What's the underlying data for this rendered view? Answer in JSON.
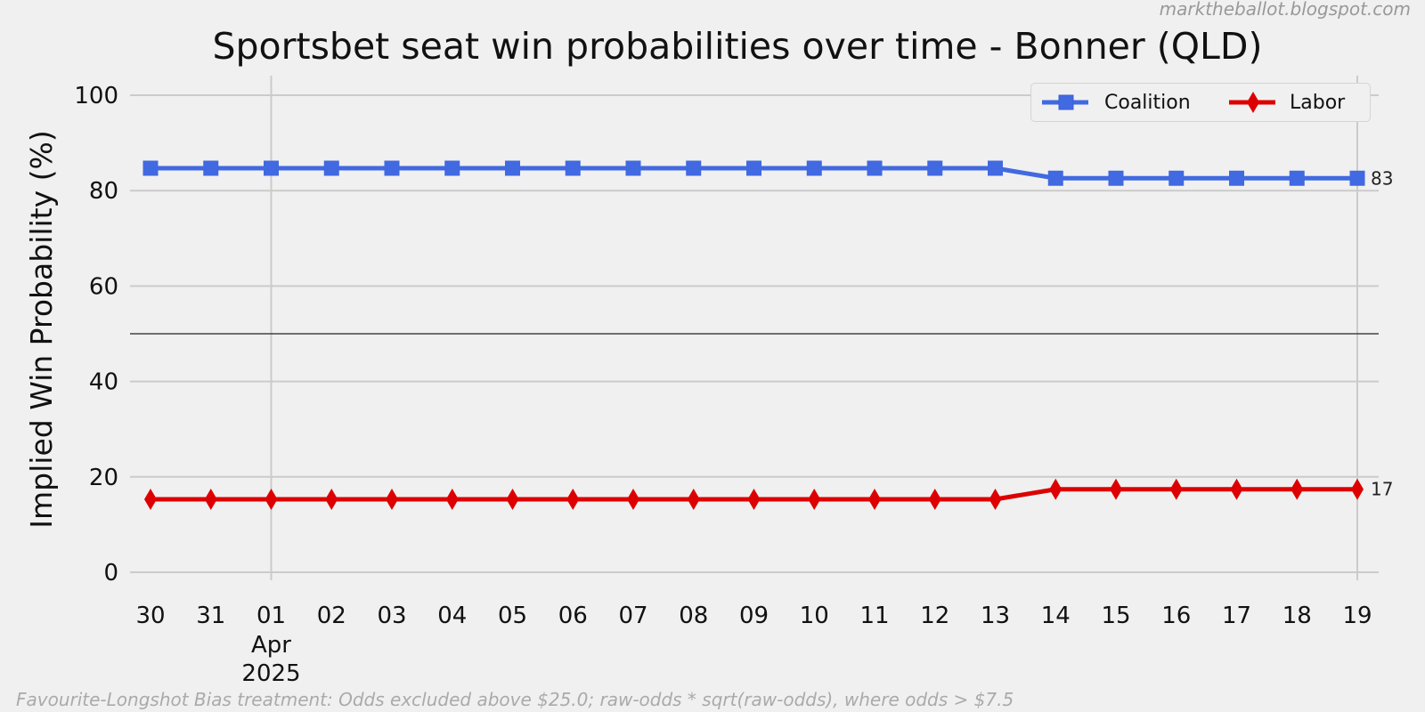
{
  "credit": "marktheballot.blogspot.com",
  "footnote": "Favourite-Longshot Bias treatment: Odds excluded above $25.0; raw-odds * sqrt(raw-odds), where odds > $7.5",
  "chart_data": {
    "type": "line",
    "title": "Sportsbet seat win probabilities over time - Bonner (QLD)",
    "xlabel": "",
    "ylabel": "Implied Win Probability (%)",
    "x": [
      "30",
      "31",
      "01",
      "02",
      "03",
      "04",
      "05",
      "06",
      "07",
      "08",
      "09",
      "10",
      "11",
      "12",
      "13",
      "14",
      "15",
      "16",
      "17",
      "18",
      "19"
    ],
    "x_dates": [
      "2025-03-30",
      "2025-03-31",
      "2025-04-01",
      "2025-04-02",
      "2025-04-03",
      "2025-04-04",
      "2025-04-05",
      "2025-04-06",
      "2025-04-07",
      "2025-04-08",
      "2025-04-09",
      "2025-04-10",
      "2025-04-11",
      "2025-04-12",
      "2025-04-13",
      "2025-04-14",
      "2025-04-15",
      "2025-04-16",
      "2025-04-17",
      "2025-04-18",
      "2025-04-19"
    ],
    "month_label": "Apr",
    "year_label": "2025",
    "yticks": [
      0,
      20,
      40,
      60,
      80,
      100
    ],
    "ylim": [
      -2,
      104
    ],
    "reference_line": 50,
    "grid": true,
    "legend_position": "top-right",
    "series": [
      {
        "name": "Coalition",
        "color": "#4169e1",
        "marker": "square",
        "values": [
          84.7,
          84.7,
          84.7,
          84.7,
          84.7,
          84.7,
          84.7,
          84.7,
          84.7,
          84.7,
          84.7,
          84.7,
          84.7,
          84.7,
          84.7,
          82.6,
          82.6,
          82.6,
          82.6,
          82.6,
          82.6
        ],
        "end_label": "83"
      },
      {
        "name": "Labor",
        "color": "#dd0000",
        "marker": "diamond",
        "values": [
          15.3,
          15.3,
          15.3,
          15.3,
          15.3,
          15.3,
          15.3,
          15.3,
          15.3,
          15.3,
          15.3,
          15.3,
          15.3,
          15.3,
          15.3,
          17.4,
          17.4,
          17.4,
          17.4,
          17.4,
          17.4
        ],
        "end_label": "17"
      }
    ]
  }
}
